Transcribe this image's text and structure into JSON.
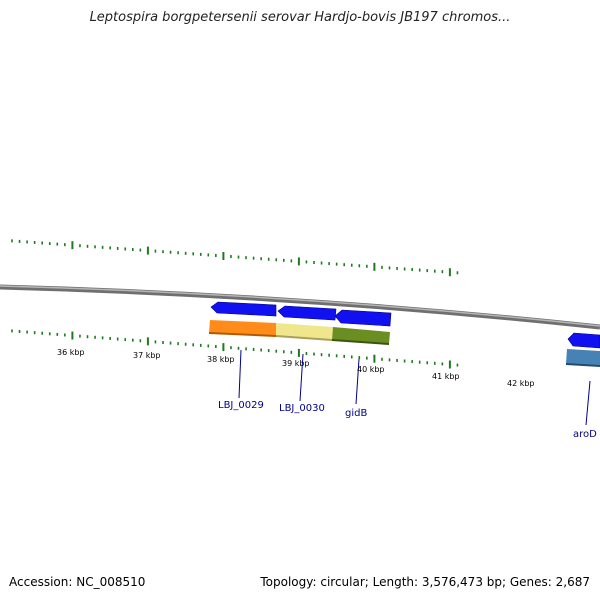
{
  "title": "Leptospira borgpetersenii serovar Hardjo-bovis JB197 chromos...",
  "footer": {
    "accession": "Accession: NC_008510",
    "summary": "Topology: circular; Length: 3,576,473 bp; Genes: 2,687"
  },
  "kbp_labels": [
    "36 kbp",
    "37 kbp",
    "38 kbp",
    "39 kbp",
    "40 kbp",
    "41 kbp",
    "42 kbp"
  ],
  "genes": [
    {
      "name": "LBJ_0029"
    },
    {
      "name": "LBJ_0030"
    },
    {
      "name": "gidB"
    },
    {
      "name": "aroD"
    }
  ],
  "colors": {
    "backbone": "#888888",
    "tick": "#1e7a1e",
    "gene_arrow": "#1010f0",
    "feature_orange": "#ff8c1a",
    "feature_yellow": "#f0e68c",
    "feature_green": "#6b8e23",
    "feature_steel": "#4682b4",
    "label": "#00008b"
  }
}
